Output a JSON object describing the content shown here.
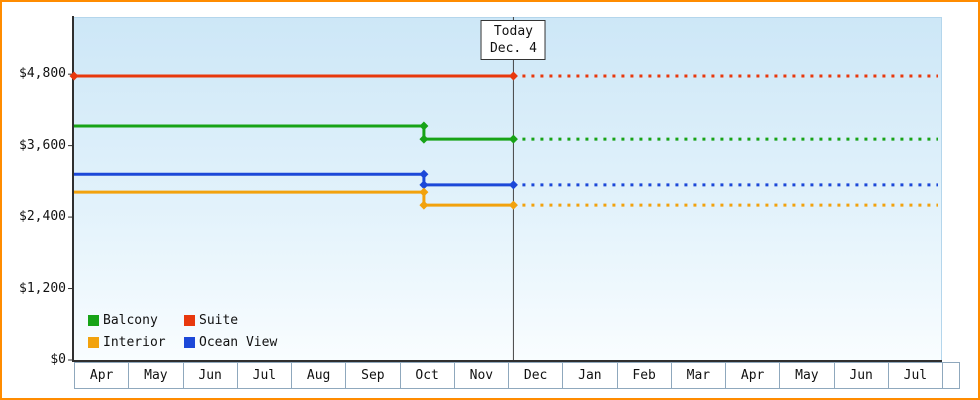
{
  "page": {
    "frame_color": "#ff8c00",
    "today_line_color": "#444444"
  },
  "chart_data": {
    "type": "line",
    "title": "",
    "xlabel": "",
    "ylabel": "",
    "x_categories": [
      "Apr",
      "May",
      "Jun",
      "Jul",
      "Aug",
      "Sep",
      "Oct",
      "Nov",
      "Dec",
      "Jan",
      "Feb",
      "Mar",
      "Apr",
      "May",
      "Jun",
      "Jul"
    ],
    "ylim": [
      0,
      5760
    ],
    "yticks": [
      {
        "value": 0,
        "label": "$0"
      },
      {
        "value": 1200,
        "label": "$1,200"
      },
      {
        "value": 2400,
        "label": "$2,400"
      },
      {
        "value": 3600,
        "label": "$3,600"
      },
      {
        "value": 4800,
        "label": "$4,800"
      }
    ],
    "today_marker": {
      "line1": "Today",
      "line2": "Dec. 4",
      "month_index": 8.1
    },
    "forecast_end_x": 16,
    "series": [
      {
        "name": "Suite",
        "color": "#e8380d",
        "points": [
          {
            "x": 0,
            "y": 4770
          },
          {
            "x": 8.1,
            "y": 4770
          }
        ],
        "forecast_y": 4770,
        "markers": [
          [
            0,
            4770
          ],
          [
            8.1,
            4770
          ]
        ]
      },
      {
        "name": "Balcony",
        "color": "#17a317",
        "points": [
          {
            "x": 0,
            "y": 3930
          },
          {
            "x": 6.45,
            "y": 3930
          },
          {
            "x": 6.45,
            "y": 3710
          },
          {
            "x": 8.1,
            "y": 3710
          }
        ],
        "forecast_y": 3710,
        "markers": [
          [
            6.45,
            3930
          ],
          [
            6.45,
            3710
          ],
          [
            8.1,
            3710
          ]
        ]
      },
      {
        "name": "Ocean View",
        "color": "#1c48d8",
        "points": [
          {
            "x": 0,
            "y": 3120
          },
          {
            "x": 6.45,
            "y": 3120
          },
          {
            "x": 6.45,
            "y": 2940
          },
          {
            "x": 8.1,
            "y": 2940
          }
        ],
        "forecast_y": 2940,
        "markers": [
          [
            6.45,
            3120
          ],
          [
            6.45,
            2940
          ],
          [
            8.1,
            2940
          ]
        ]
      },
      {
        "name": "Interior",
        "color": "#f2a20d",
        "points": [
          {
            "x": 0,
            "y": 2820
          },
          {
            "x": 6.45,
            "y": 2820
          },
          {
            "x": 6.45,
            "y": 2600
          },
          {
            "x": 8.1,
            "y": 2600
          }
        ],
        "forecast_y": 2600,
        "markers": [
          [
            6.45,
            2820
          ],
          [
            6.45,
            2600
          ],
          [
            8.1,
            2600
          ]
        ]
      }
    ],
    "legend": [
      {
        "label": "Balcony",
        "color": "#17a317"
      },
      {
        "label": "Suite",
        "color": "#e8380d"
      },
      {
        "label": "Interior",
        "color": "#f2a20d"
      },
      {
        "label": "Ocean View",
        "color": "#1c48d8"
      }
    ],
    "legend_position": "bottom-left-inside",
    "grid": false
  }
}
